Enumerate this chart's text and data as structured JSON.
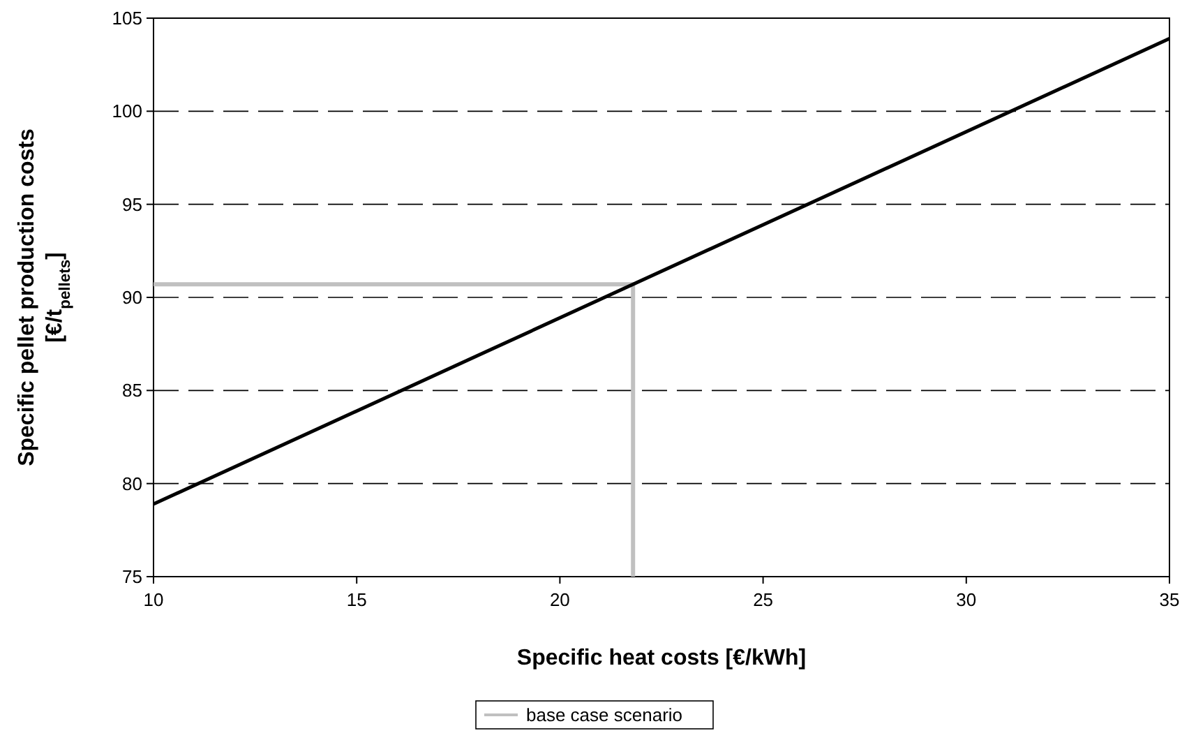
{
  "chart_data": {
    "type": "line",
    "xlabel": "Specific heat costs [€/kWh]",
    "ylabel": "Specific pellet production costs\n[€/t$_{pellets}$]",
    "xlim": [
      10,
      35
    ],
    "xticks": [
      10,
      15,
      20,
      25,
      30,
      35
    ],
    "ylim": [
      75,
      105
    ],
    "yticks": [
      75,
      80,
      85,
      90,
      95,
      100,
      105
    ],
    "grid": "y",
    "legend": "bottom",
    "series": [
      {
        "color": "#000000",
        "x": [
          10,
          35
        ],
        "values": [
          78.9,
          103.9
        ]
      },
      {
        "name": "base case scenario",
        "color": "#c0c0c0",
        "x": [
          10,
          21.8,
          21.8
        ],
        "values": [
          90.7,
          90.7,
          75
        ]
      }
    ]
  }
}
